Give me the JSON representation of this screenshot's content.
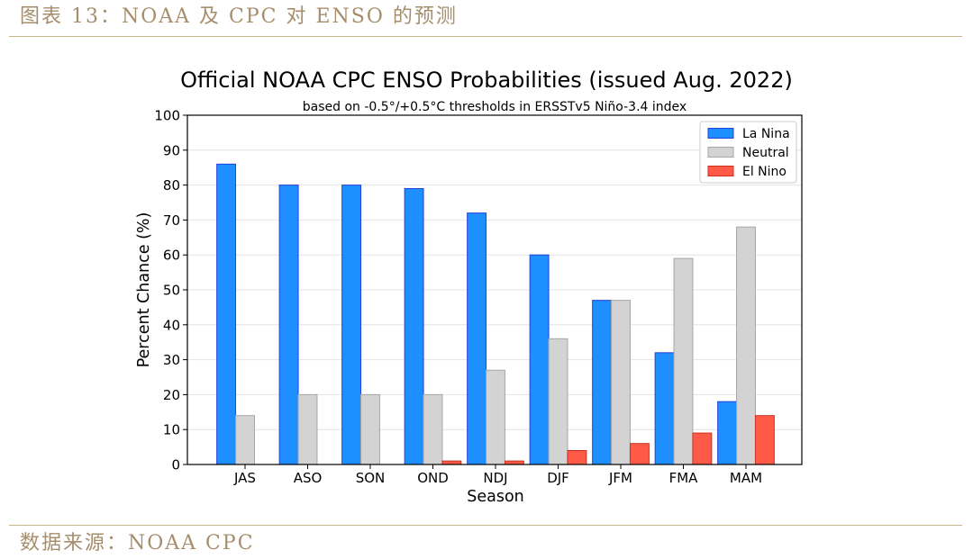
{
  "header": {
    "caption": "图表 13：NOAA 及 CPC 对 ENSO 的预测"
  },
  "footer": {
    "source": "数据来源：NOAA CPC"
  },
  "colors": {
    "accent": "#a68d6c",
    "rule": "#c9b48f"
  },
  "chart_data": {
    "type": "bar",
    "title": "Official NOAA CPC ENSO Probabilities (issued Aug. 2022)",
    "subtitle": "based on -0.5°/+0.5°C thresholds in ERSSTv5 Niño-3.4 index",
    "xlabel": "Season",
    "ylabel": "Percent Chance (%)",
    "ylim": [
      0,
      100
    ],
    "yticks": [
      0,
      10,
      20,
      30,
      40,
      50,
      60,
      70,
      80,
      90,
      100
    ],
    "grid": true,
    "legend": "top-right",
    "categories": [
      "JAS",
      "ASO",
      "SON",
      "OND",
      "NDJ",
      "DJF",
      "JFM",
      "FMA",
      "MAM"
    ],
    "series": [
      {
        "name": "La Nina",
        "color": "#1e8fff",
        "edge": "#2740d6",
        "values": [
          86,
          80,
          80,
          79,
          72,
          60,
          47,
          32,
          18
        ]
      },
      {
        "name": "Neutral",
        "color": "#d3d3d3",
        "edge": "#a6a6a6",
        "values": [
          14,
          20,
          20,
          20,
          27,
          36,
          47,
          59,
          68
        ]
      },
      {
        "name": "El Nino",
        "color": "#ff5a48",
        "edge": "#c8321e",
        "values": [
          0,
          0,
          0,
          1,
          1,
          4,
          6,
          9,
          14
        ]
      }
    ]
  }
}
